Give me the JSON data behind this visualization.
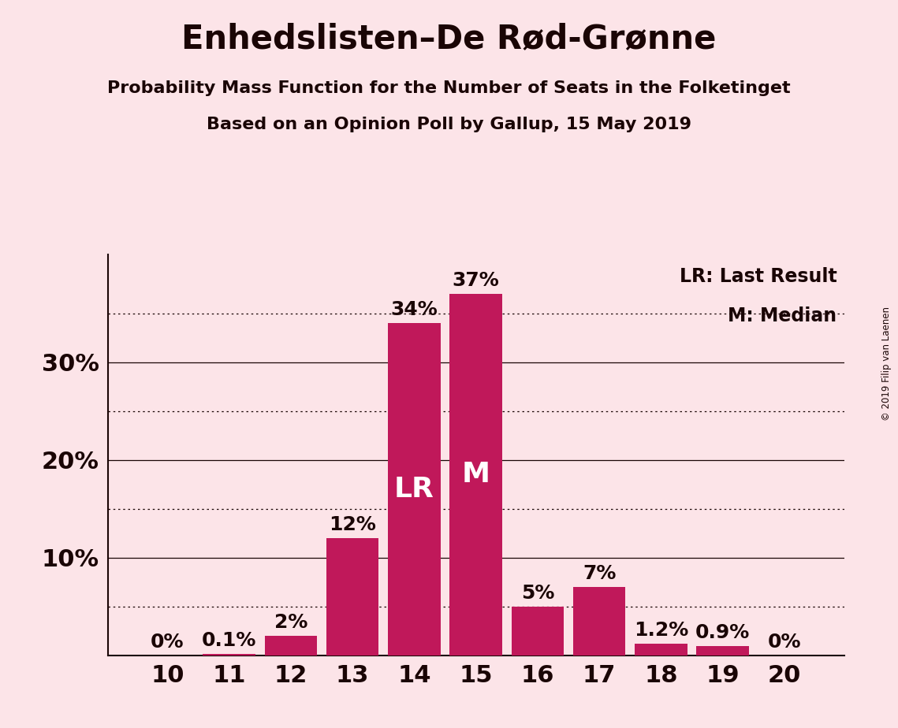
{
  "title": "Enhedslisten–De Rød-Grønne",
  "subtitle": "Probability Mass Function for the Number of Seats in the Folketinget",
  "subsubtitle": "Based on an Opinion Poll by Gallup, 15 May 2019",
  "copyright": "© 2019 Filip van Laenen",
  "categories": [
    10,
    11,
    12,
    13,
    14,
    15,
    16,
    17,
    18,
    19,
    20
  ],
  "values": [
    0.0,
    0.1,
    2.0,
    12.0,
    34.0,
    37.0,
    5.0,
    7.0,
    1.2,
    0.9,
    0.0
  ],
  "bar_labels": [
    "0%",
    "0.1%",
    "2%",
    "12%",
    "34%",
    "37%",
    "5%",
    "7%",
    "1.2%",
    "0.9%",
    "0%"
  ],
  "bar_color": "#c0185a",
  "background_color": "#fce4e8",
  "text_color": "#1a0505",
  "lr_bar": 14,
  "median_bar": 15,
  "ylim": [
    0,
    41
  ],
  "solid_gridlines": [
    10,
    20,
    30
  ],
  "dotted_gridlines": [
    5,
    15,
    25,
    35
  ],
  "ytick_positions": [
    10,
    20,
    30
  ],
  "ytick_labels": [
    "10%",
    "20%",
    "30%"
  ],
  "legend_lr": "LR: Last Result",
  "legend_m": "M: Median",
  "title_fontsize": 30,
  "subtitle_fontsize": 16,
  "subsubtitle_fontsize": 16,
  "bar_label_fontsize": 18,
  "bar_annotation_fontsize": 26,
  "ytick_fontsize": 22,
  "xtick_fontsize": 22,
  "legend_fontsize": 17
}
